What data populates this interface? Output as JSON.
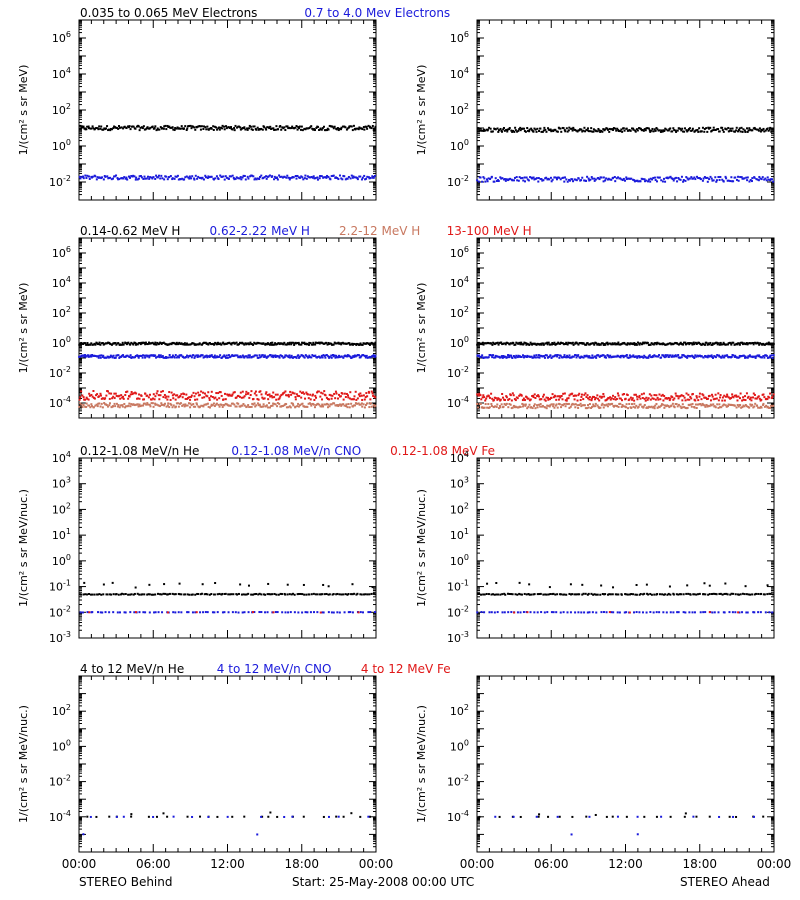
{
  "colors": {
    "black": "#000000",
    "blue": "#1a1adb",
    "brown": "#c87860",
    "red": "#e01818"
  },
  "figure": {
    "left_caption": "STEREO Behind",
    "center_caption": "Start: 25-May-2008 00:00 UTC",
    "right_caption": "STEREO Ahead"
  },
  "chart_data": [
    {
      "type": "scatter",
      "row": 0,
      "side": "behind",
      "labels": [
        {
          "text": "0.035 to 0.065 MeV Electrons",
          "color": "black"
        },
        {
          "text": "0.7 to 4.0 Mev Electrons",
          "color": "blue"
        }
      ],
      "ylabel": "1/(cm² s sr MeV)",
      "yscale": "log",
      "ylim_exp": [
        -3,
        7
      ],
      "yticks": [
        "10^-2",
        "10^0",
        "10^2",
        "10^4",
        "10^6"
      ],
      "xlim_hours": [
        0,
        24
      ],
      "xticks": [
        "00:00",
        "06:00",
        "12:00",
        "18:00",
        "00:00"
      ],
      "series": [
        {
          "color": "black",
          "log10_mean": 1.0,
          "log10_spread": 0.12,
          "points": 300
        },
        {
          "color": "blue",
          "log10_mean": -1.75,
          "log10_spread": 0.12,
          "points": 260
        }
      ]
    },
    {
      "type": "scatter",
      "row": 0,
      "side": "ahead",
      "ylabel": "1/(cm² s sr MeV)",
      "yscale": "log",
      "ylim_exp": [
        -3,
        7
      ],
      "yticks": [
        "10^-2",
        "10^0",
        "10^2",
        "10^4",
        "10^6"
      ],
      "xlim_hours": [
        0,
        24
      ],
      "xticks": [
        "00:00",
        "06:00",
        "12:00",
        "18:00",
        "00:00"
      ],
      "series": [
        {
          "color": "black",
          "log10_mean": 0.9,
          "log10_spread": 0.12,
          "points": 300
        },
        {
          "color": "blue",
          "log10_mean": -1.85,
          "log10_spread": 0.14,
          "points": 260
        }
      ]
    },
    {
      "type": "scatter",
      "row": 1,
      "side": "behind",
      "labels": [
        {
          "text": "0.14-0.62 MeV H",
          "color": "black"
        },
        {
          "text": "0.62-2.22 MeV H",
          "color": "blue"
        },
        {
          "text": "2.2-12 MeV H",
          "color": "brown"
        },
        {
          "text": "13-100 MeV H",
          "color": "red"
        }
      ],
      "ylabel": "1/(cm² s sr MeV)",
      "yscale": "log",
      "ylim_exp": [
        -5,
        7
      ],
      "yticks": [
        "10^-4",
        "10^-2",
        "10^0",
        "10^2",
        "10^4",
        "10^6"
      ],
      "xlim_hours": [
        0,
        24
      ],
      "xticks": [
        "00:00",
        "06:00",
        "12:00",
        "18:00",
        "00:00"
      ],
      "series": [
        {
          "color": "black",
          "log10_mean": -0.05,
          "log10_spread": 0.08,
          "points": 320
        },
        {
          "color": "blue",
          "log10_mean": -0.9,
          "log10_spread": 0.1,
          "points": 320
        },
        {
          "color": "brown",
          "log10_mean": -4.15,
          "log10_spread": 0.15,
          "points": 280
        },
        {
          "color": "red",
          "log10_mean": -3.5,
          "log10_spread": 0.3,
          "points": 300
        }
      ]
    },
    {
      "type": "scatter",
      "row": 1,
      "side": "ahead",
      "ylabel": "1/(cm² s sr MeV)",
      "yscale": "log",
      "ylim_exp": [
        -5,
        7
      ],
      "yticks": [
        "10^-4",
        "10^-2",
        "10^0",
        "10^2",
        "10^4",
        "10^6"
      ],
      "xlim_hours": [
        0,
        24
      ],
      "xticks": [
        "00:00",
        "06:00",
        "12:00",
        "18:00",
        "00:00"
      ],
      "series": [
        {
          "color": "black",
          "log10_mean": -0.05,
          "log10_spread": 0.08,
          "points": 320
        },
        {
          "color": "blue",
          "log10_mean": -0.9,
          "log10_spread": 0.1,
          "points": 320
        },
        {
          "color": "brown",
          "log10_mean": -4.2,
          "log10_spread": 0.15,
          "points": 280
        },
        {
          "color": "red",
          "log10_mean": -3.6,
          "log10_spread": 0.25,
          "points": 300
        }
      ]
    },
    {
      "type": "scatter",
      "row": 2,
      "side": "behind",
      "labels": [
        {
          "text": "0.12-1.08 MeV/n He",
          "color": "black"
        },
        {
          "text": "0.12-1.08 MeV/n CNO",
          "color": "blue"
        },
        {
          "text": "0.12-1.08 MeV Fe",
          "color": "red"
        }
      ],
      "ylabel": "1/(cm² s sr MeV/nuc.)",
      "yscale": "log",
      "ylim_exp": [
        -3,
        4
      ],
      "yticks": [
        "10^-3",
        "10^-2",
        "10^-1",
        "10^0",
        "10^1",
        "10^2",
        "10^3",
        "10^4"
      ],
      "xlim_hours": [
        0,
        24
      ],
      "xticks": [
        "00:00",
        "06:00",
        "12:00",
        "18:00",
        "00:00"
      ],
      "series": [
        {
          "color": "black",
          "log10_mean": -1.3,
          "log10_spread": 0.02,
          "points": 160
        },
        {
          "color": "black",
          "log10_mean": -0.95,
          "log10_spread": 0.1,
          "points": 18
        },
        {
          "color": "blue",
          "log10_mean": -2.0,
          "log10_spread": 0.01,
          "points": 90
        },
        {
          "color": "red",
          "log10_mean": -2.0,
          "log10_spread": 0.01,
          "points": 8
        }
      ]
    },
    {
      "type": "scatter",
      "row": 2,
      "side": "ahead",
      "ylabel": "1/(cm² s sr MeV/nuc.)",
      "yscale": "log",
      "ylim_exp": [
        -3,
        4
      ],
      "yticks": [
        "10^-3",
        "10^-2",
        "10^-1",
        "10^0",
        "10^1",
        "10^2",
        "10^3",
        "10^4"
      ],
      "xlim_hours": [
        0,
        24
      ],
      "xticks": [
        "00:00",
        "06:00",
        "12:00",
        "18:00",
        "00:00"
      ],
      "series": [
        {
          "color": "black",
          "log10_mean": -1.3,
          "log10_spread": 0.02,
          "points": 160
        },
        {
          "color": "black",
          "log10_mean": -0.95,
          "log10_spread": 0.1,
          "points": 18
        },
        {
          "color": "blue",
          "log10_mean": -2.0,
          "log10_spread": 0.01,
          "points": 90
        },
        {
          "color": "red",
          "log10_mean": -2.0,
          "log10_spread": 0.01,
          "points": 6
        }
      ]
    },
    {
      "type": "scatter",
      "row": 3,
      "side": "behind",
      "labels": [
        {
          "text": "4 to 12 MeV/n He",
          "color": "black"
        },
        {
          "text": "4 to 12 MeV/n CNO",
          "color": "blue"
        },
        {
          "text": "4 to 12 MeV Fe",
          "color": "red"
        }
      ],
      "ylabel": "1/(cm² s sr MeV/nuc.)",
      "yscale": "log",
      "ylim_exp": [
        -6,
        4
      ],
      "yticks": [
        "10^-4",
        "10^-2",
        "10^0",
        "10^2"
      ],
      "xlim_hours": [
        0,
        24
      ],
      "xticks": [
        "00:00",
        "06:00",
        "12:00",
        "18:00",
        "00:00"
      ],
      "series": [
        {
          "color": "black",
          "log10_mean": -4.0,
          "log10_spread": 0.01,
          "points": 24
        },
        {
          "color": "black",
          "log10_mean": -3.8,
          "log10_spread": 0.05,
          "points": 4
        },
        {
          "color": "blue",
          "log10_mean": -4.0,
          "log10_spread": 0.01,
          "points": 14
        },
        {
          "color": "blue",
          "log10_mean": -5.0,
          "log10_spread": 0.01,
          "points": 2
        }
      ]
    },
    {
      "type": "scatter",
      "row": 3,
      "side": "ahead",
      "ylabel": "1/(cm² s sr MeV/nuc.)",
      "yscale": "log",
      "ylim_exp": [
        -6,
        4
      ],
      "yticks": [
        "10^-4",
        "10^-2",
        "10^0",
        "10^2"
      ],
      "xlim_hours": [
        0,
        24
      ],
      "xticks": [
        "00:00",
        "06:00",
        "12:00",
        "18:00",
        "00:00"
      ],
      "series": [
        {
          "color": "black",
          "log10_mean": -4.0,
          "log10_spread": 0.01,
          "points": 22
        },
        {
          "color": "black",
          "log10_mean": -3.85,
          "log10_spread": 0.05,
          "points": 3
        },
        {
          "color": "blue",
          "log10_mean": -4.0,
          "log10_spread": 0.01,
          "points": 12
        },
        {
          "color": "blue",
          "log10_mean": -5.0,
          "log10_spread": 0.01,
          "points": 2
        }
      ]
    }
  ]
}
